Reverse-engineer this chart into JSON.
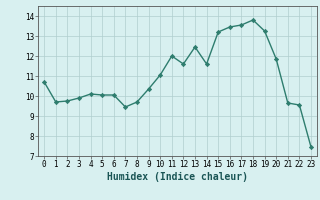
{
  "x": [
    0,
    1,
    2,
    3,
    4,
    5,
    6,
    7,
    8,
    9,
    10,
    11,
    12,
    13,
    14,
    15,
    16,
    17,
    18,
    19,
    20,
    21,
    22,
    23
  ],
  "y": [
    10.7,
    9.7,
    9.75,
    9.9,
    10.1,
    10.05,
    10.05,
    9.45,
    9.7,
    10.35,
    11.05,
    12.0,
    11.6,
    12.45,
    11.6,
    13.2,
    13.45,
    13.55,
    13.8,
    13.25,
    11.85,
    9.65,
    9.55,
    7.45
  ],
  "line_color": "#2e7d6e",
  "marker": "D",
  "markersize": 2.2,
  "linewidth": 1.0,
  "bg_color": "#d8f0f0",
  "grid_color": "#b0cece",
  "xlabel": "Humidex (Indice chaleur)",
  "xlabel_fontsize": 7,
  "xlim": [
    -0.5,
    23.5
  ],
  "ylim": [
    7,
    14.5
  ],
  "yticks": [
    7,
    8,
    9,
    10,
    11,
    12,
    13,
    14
  ],
  "xticks": [
    0,
    1,
    2,
    3,
    4,
    5,
    6,
    7,
    8,
    9,
    10,
    11,
    12,
    13,
    14,
    15,
    16,
    17,
    18,
    19,
    20,
    21,
    22,
    23
  ],
  "tick_fontsize": 5.5
}
